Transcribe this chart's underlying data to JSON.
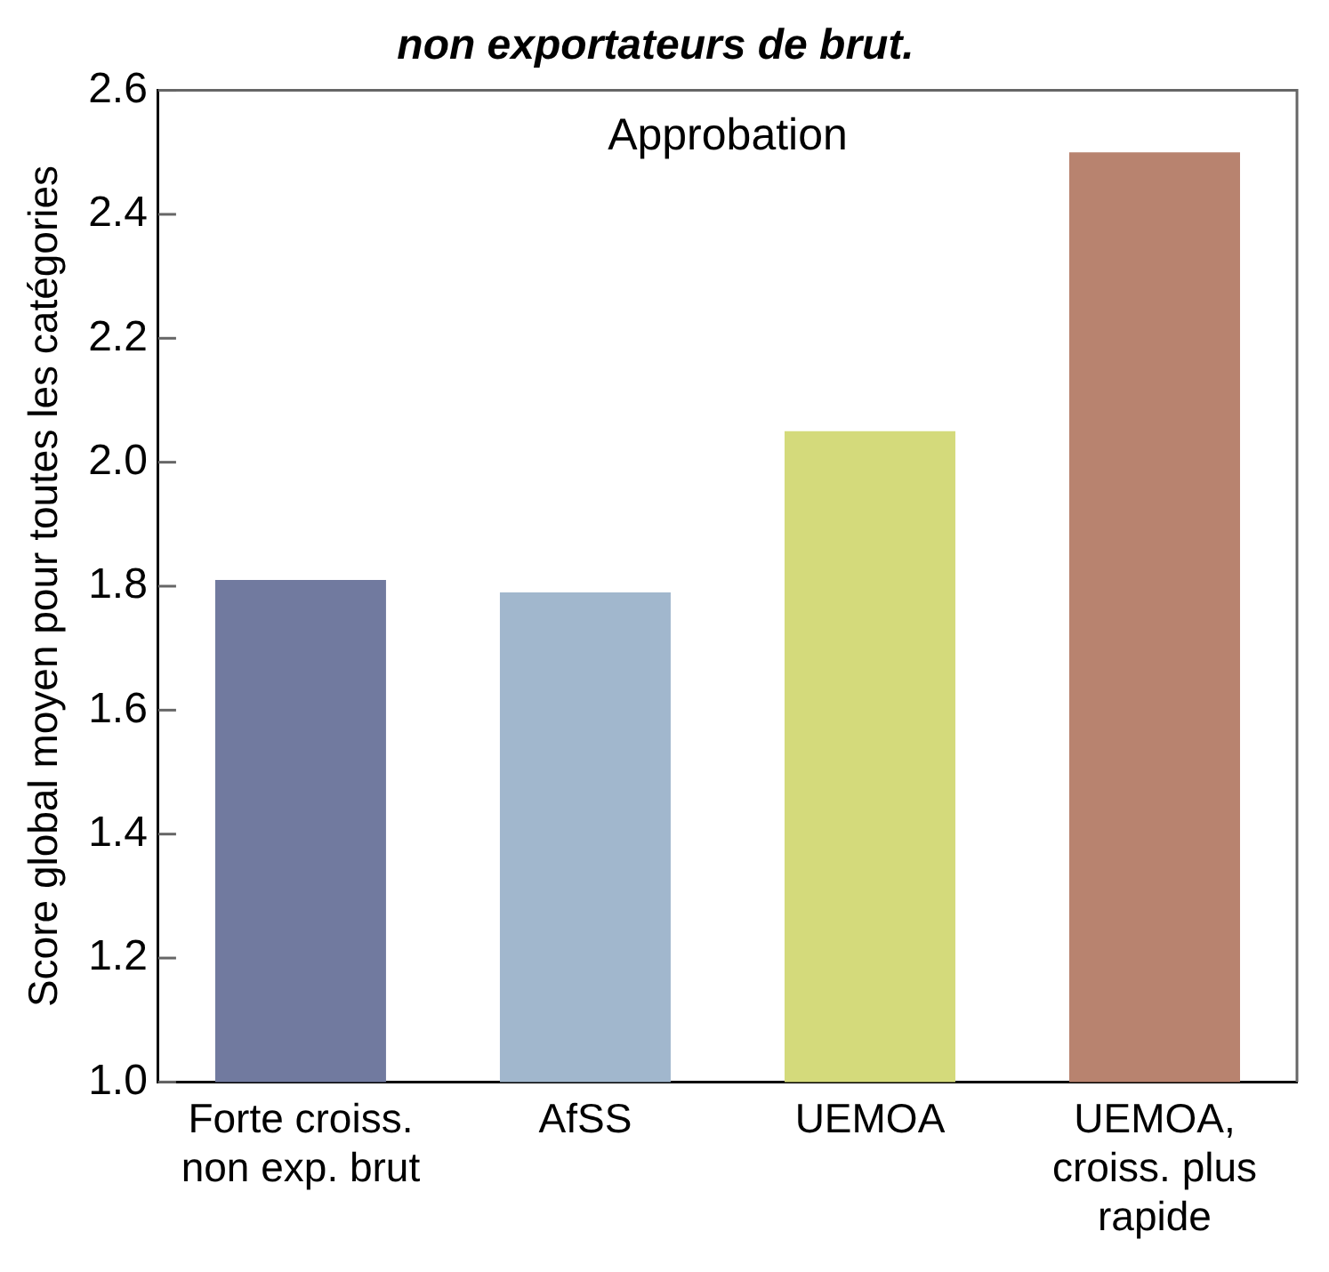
{
  "chart_data": {
    "type": "bar",
    "title": "non exportateurs de brut.",
    "ylabel": "Score global moyen pour toutes les catégories",
    "annotations": [
      "Approbation"
    ],
    "categories": [
      "Forte croiss. non exp. brut",
      "AfSS",
      "UEMOA",
      "UEMOA, croiss. plus rapide"
    ],
    "values": [
      1.81,
      1.79,
      2.05,
      2.5
    ],
    "colors": [
      "#717a9f",
      "#a1b7cd",
      "#d4da7b",
      "#b8836f"
    ],
    "ylim": [
      1.0,
      2.6
    ],
    "yticks": [
      {
        "value": 1,
        "label": "1.0"
      },
      {
        "value": 1.2,
        "label": "1.2"
      },
      {
        "value": 1.4,
        "label": "1.4"
      },
      {
        "value": 1.6,
        "label": "1.6"
      },
      {
        "value": 1.8,
        "label": "1.8"
      },
      {
        "value": 2,
        "label": "2.0"
      },
      {
        "value": 2.2,
        "label": "2.2"
      },
      {
        "value": 2.4,
        "label": "2.4"
      },
      {
        "value": 2.6,
        "label": "2.6"
      }
    ],
    "grid": false,
    "legend": false
  }
}
